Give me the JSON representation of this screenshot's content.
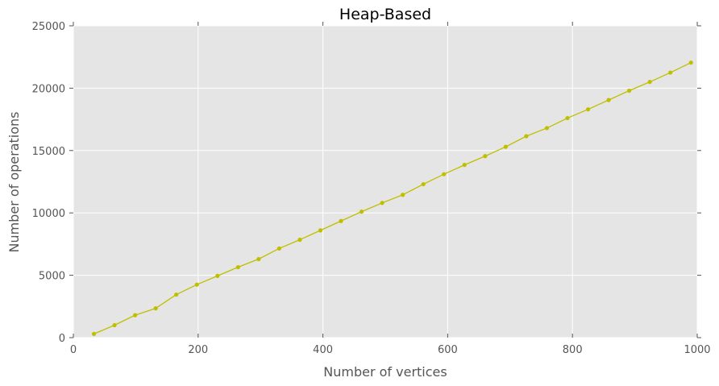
{
  "chart_data": {
    "type": "line",
    "title": "Heap-Based",
    "xlabel": "Number of vertices",
    "ylabel": "Number of operations",
    "xlim": [
      0,
      1000
    ],
    "ylim": [
      0,
      25000
    ],
    "xticks": [
      0,
      200,
      400,
      600,
      800,
      1000
    ],
    "yticks": [
      0,
      5000,
      10000,
      15000,
      20000,
      25000
    ],
    "grid": true,
    "colors": {
      "background": "#e5e5e5",
      "grid": "#ffffff",
      "series": "#bfbf00"
    },
    "series": [
      {
        "x": [
          33,
          66,
          99,
          132,
          165,
          198,
          231,
          264,
          297,
          330,
          363,
          396,
          429,
          462,
          495,
          528,
          561,
          594,
          627,
          660,
          693,
          726,
          759,
          792,
          825,
          858,
          891,
          924,
          957,
          990
        ],
        "values": [
          300,
          1000,
          1800,
          2350,
          3450,
          4250,
          4950,
          5650,
          6300,
          7150,
          7850,
          8600,
          9350,
          10100,
          10800,
          11450,
          12300,
          13100,
          13850,
          14550,
          15300,
          16150,
          16800,
          17600,
          18300,
          19050,
          19800,
          20500,
          21250,
          22050
        ]
      }
    ]
  }
}
